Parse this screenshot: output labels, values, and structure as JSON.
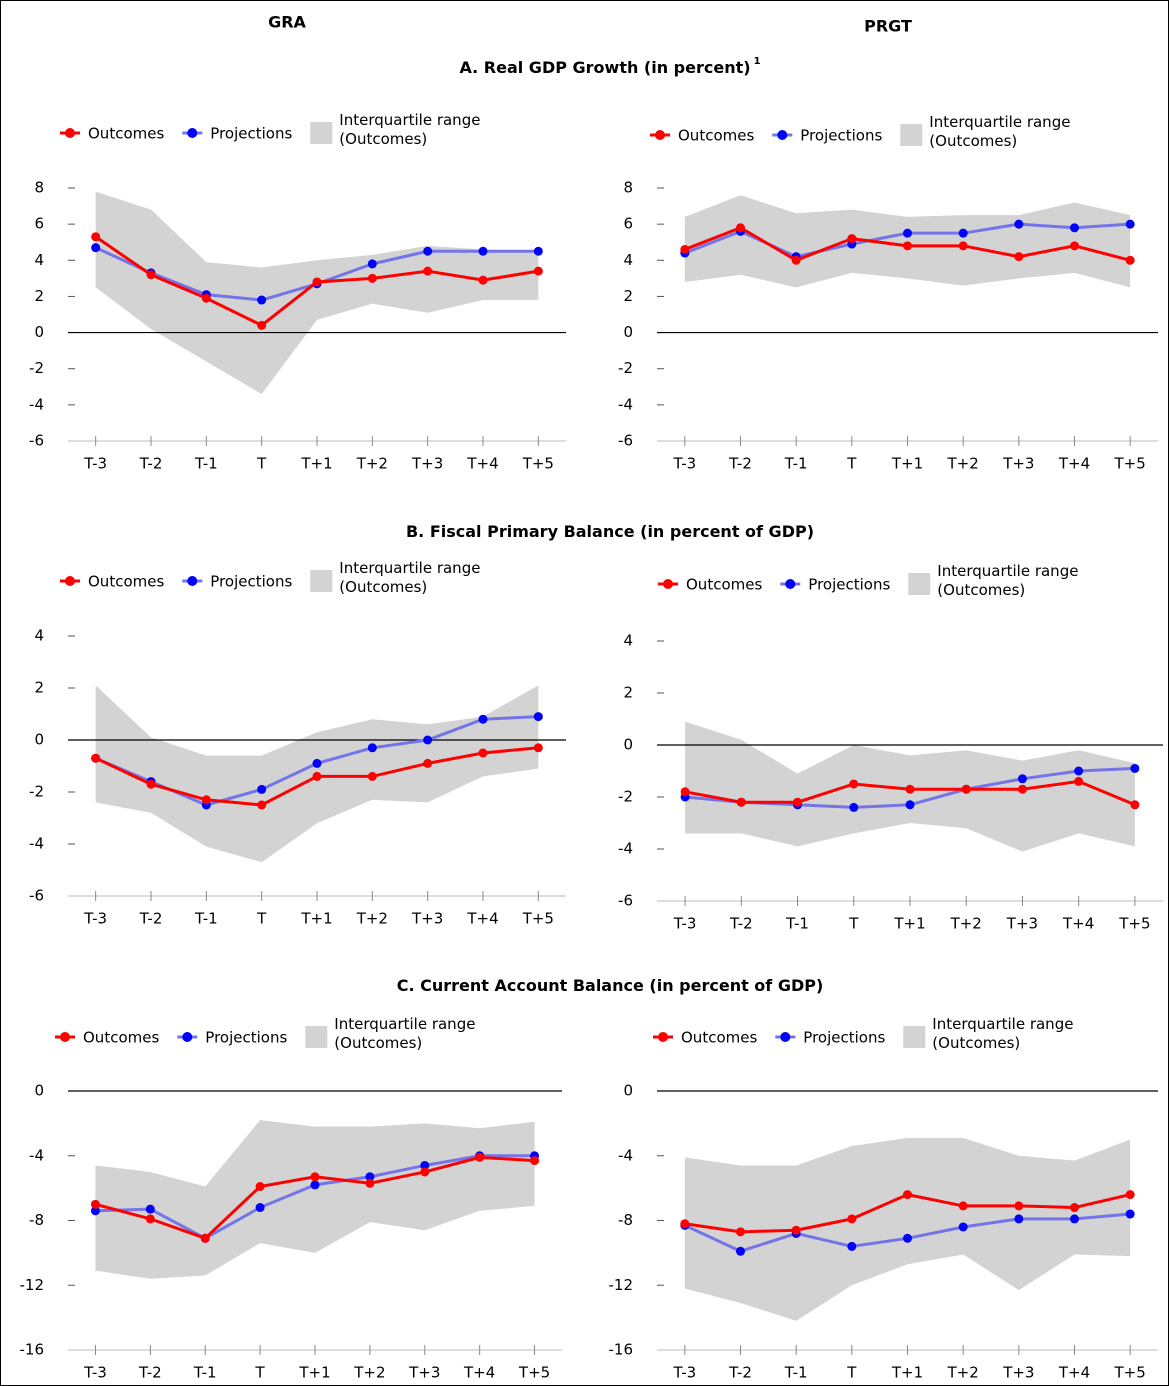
{
  "columns": [
    "GRA",
    "PRGT"
  ],
  "sections": [
    {
      "title": "A. Real GDP Growth (in percent)",
      "note": "1"
    },
    {
      "title": "B. Fiscal Primary Balance (in percent of GDP)"
    },
    {
      "title": "C. Current Account Balance (in percent of GDP)"
    }
  ],
  "chart_data": [
    {
      "type": "line",
      "categories": [
        "T-3",
        "T-2",
        "T-1",
        "T",
        "T+1",
        "T+2",
        "T+3",
        "T+4",
        "T+5"
      ],
      "ylim": [
        -6,
        8
      ],
      "yticks": [
        -6,
        -4,
        -2,
        0,
        2,
        4,
        6,
        8
      ],
      "series": [
        {
          "name": "Outcomes",
          "color": "#ff0000",
          "line_color": "#ff0000",
          "values": [
            5.3,
            3.2,
            1.9,
            0.4,
            2.8,
            3.0,
            3.4,
            2.9,
            3.4
          ]
        },
        {
          "name": "Projections",
          "color": "#0000ff",
          "line_color": "#7474e8",
          "values": [
            4.7,
            3.3,
            2.1,
            1.8,
            2.7,
            3.8,
            4.5,
            4.5,
            4.5
          ]
        }
      ],
      "range": {
        "name": "Interquartile range (Outcomes)",
        "color": "#d3d3d3",
        "high": [
          7.8,
          6.8,
          3.9,
          3.6,
          4.0,
          4.3,
          4.8,
          4.6,
          4.5
        ],
        "low": [
          2.5,
          0.2,
          -1.6,
          -3.4,
          0.7,
          1.6,
          1.1,
          1.8,
          1.8
        ]
      }
    },
    {
      "type": "line",
      "categories": [
        "T-3",
        "T-2",
        "T-1",
        "T",
        "T+1",
        "T+2",
        "T+3",
        "T+4",
        "T+5"
      ],
      "ylim": [
        -6,
        8
      ],
      "yticks": [
        -6,
        -4,
        -2,
        0,
        2,
        4,
        6,
        8
      ],
      "series": [
        {
          "name": "Outcomes",
          "color": "#ff0000",
          "line_color": "#ff0000",
          "values": [
            4.6,
            5.8,
            4.0,
            5.2,
            4.8,
            4.8,
            4.2,
            4.8,
            4.0
          ]
        },
        {
          "name": "Projections",
          "color": "#0000ff",
          "line_color": "#7474e8",
          "values": [
            4.4,
            5.6,
            4.2,
            4.9,
            5.5,
            5.5,
            6.0,
            5.8,
            6.0
          ]
        }
      ],
      "range": {
        "name": "Interquartile range (Outcomes)",
        "color": "#d3d3d3",
        "high": [
          6.4,
          7.6,
          6.6,
          6.8,
          6.4,
          6.5,
          6.5,
          7.2,
          6.5
        ],
        "low": [
          2.8,
          3.2,
          2.5,
          3.3,
          3.0,
          2.6,
          3.0,
          3.3,
          2.5
        ]
      }
    },
    {
      "type": "line",
      "categories": [
        "T-3",
        "T-2",
        "T-1",
        "T",
        "T+1",
        "T+2",
        "T+3",
        "T+4",
        "T+5"
      ],
      "ylim": [
        -6,
        4
      ],
      "yticks": [
        -6,
        -4,
        -2,
        0,
        2,
        4
      ],
      "series": [
        {
          "name": "Outcomes",
          "color": "#ff0000",
          "line_color": "#ff0000",
          "values": [
            -0.7,
            -1.7,
            -2.3,
            -2.5,
            -1.4,
            -1.4,
            -0.9,
            -0.5,
            -0.3
          ]
        },
        {
          "name": "Projections",
          "color": "#0000ff",
          "line_color": "#7474e8",
          "values": [
            -0.7,
            -1.6,
            -2.5,
            -1.9,
            -0.9,
            -0.3,
            0.0,
            0.8,
            0.9
          ]
        }
      ],
      "range": {
        "name": "Interquartile range (Outcomes)",
        "color": "#d3d3d3",
        "high": [
          2.1,
          0.1,
          -0.6,
          -0.6,
          0.3,
          0.8,
          0.6,
          0.9,
          2.1
        ],
        "low": [
          -2.4,
          -2.8,
          -4.1,
          -4.7,
          -3.2,
          -2.3,
          -2.4,
          -1.4,
          -1.1
        ]
      }
    },
    {
      "type": "line",
      "categories": [
        "T-3",
        "T-2",
        "T-1",
        "T",
        "T+1",
        "T+2",
        "T+3",
        "T+4",
        "T+5"
      ],
      "ylim": [
        -6,
        4
      ],
      "yticks": [
        -6,
        -4,
        -2,
        0,
        2,
        4
      ],
      "series": [
        {
          "name": "Outcomes",
          "color": "#ff0000",
          "line_color": "#ff0000",
          "values": [
            -1.8,
            -2.2,
            -2.2,
            -1.5,
            -1.7,
            -1.7,
            -1.7,
            -1.4,
            -2.3
          ]
        },
        {
          "name": "Projections",
          "color": "#0000ff",
          "line_color": "#7474e8",
          "values": [
            -2.0,
            -2.2,
            -2.3,
            -2.4,
            -2.3,
            -1.7,
            -1.3,
            -1.0,
            -0.9
          ]
        }
      ],
      "range": {
        "name": "Interquartile range (Outcomes)",
        "color": "#d3d3d3",
        "high": [
          0.9,
          0.2,
          -1.1,
          0.0,
          -0.4,
          -0.2,
          -0.6,
          -0.2,
          -0.7
        ],
        "low": [
          -3.4,
          -3.4,
          -3.9,
          -3.4,
          -3.0,
          -3.2,
          -4.1,
          -3.4,
          -3.9
        ]
      }
    },
    {
      "type": "line",
      "categories": [
        "T-3",
        "T-2",
        "T-1",
        "T",
        "T+1",
        "T+2",
        "T+3",
        "T+4",
        "T+5"
      ],
      "ylim": [
        -16,
        0
      ],
      "yticks": [
        -16,
        -12,
        -8,
        -4,
        0
      ],
      "series": [
        {
          "name": "Outcomes",
          "color": "#ff0000",
          "line_color": "#ff0000",
          "values": [
            -7.0,
            -7.9,
            -9.1,
            -5.9,
            -5.3,
            -5.7,
            -5.0,
            -4.1,
            -4.3
          ]
        },
        {
          "name": "Projections",
          "color": "#0000ff",
          "line_color": "#7474e8",
          "values": [
            -7.4,
            -7.3,
            -9.1,
            -7.2,
            -5.8,
            -5.3,
            -4.6,
            -4.0,
            -4.0
          ]
        }
      ],
      "range": {
        "name": "Interquartile range (Outcomes)",
        "color": "#d3d3d3",
        "high": [
          -4.6,
          -5.0,
          -5.9,
          -1.8,
          -2.2,
          -2.2,
          -2.0,
          -2.3,
          -1.9
        ],
        "low": [
          -11.1,
          -11.6,
          -11.4,
          -9.4,
          -10.0,
          -8.1,
          -8.6,
          -7.4,
          -7.1
        ]
      }
    },
    {
      "type": "line",
      "categories": [
        "T-3",
        "T-2",
        "T-1",
        "T",
        "T+1",
        "T+2",
        "T+3",
        "T+4",
        "T+5"
      ],
      "ylim": [
        -16,
        0
      ],
      "yticks": [
        -16,
        -12,
        -8,
        -4,
        0
      ],
      "series": [
        {
          "name": "Outcomes",
          "color": "#ff0000",
          "line_color": "#ff0000",
          "values": [
            -8.2,
            -8.7,
            -8.6,
            -7.9,
            -6.4,
            -7.1,
            -7.1,
            -7.2,
            -6.4
          ]
        },
        {
          "name": "Projections",
          "color": "#0000ff",
          "line_color": "#7474e8",
          "values": [
            -8.3,
            -9.9,
            -8.8,
            -9.6,
            -9.1,
            -8.4,
            -7.9,
            -7.9,
            -7.6
          ]
        }
      ],
      "range": {
        "name": "Interquartile range (Outcomes)",
        "color": "#d3d3d3",
        "high": [
          -4.1,
          -4.6,
          -4.6,
          -3.4,
          -2.9,
          -2.9,
          -4.0,
          -4.3,
          -3.0
        ],
        "low": [
          -12.2,
          -13.1,
          -14.2,
          -12.0,
          -10.7,
          -10.1,
          -12.3,
          -10.1,
          -10.2
        ]
      }
    }
  ]
}
